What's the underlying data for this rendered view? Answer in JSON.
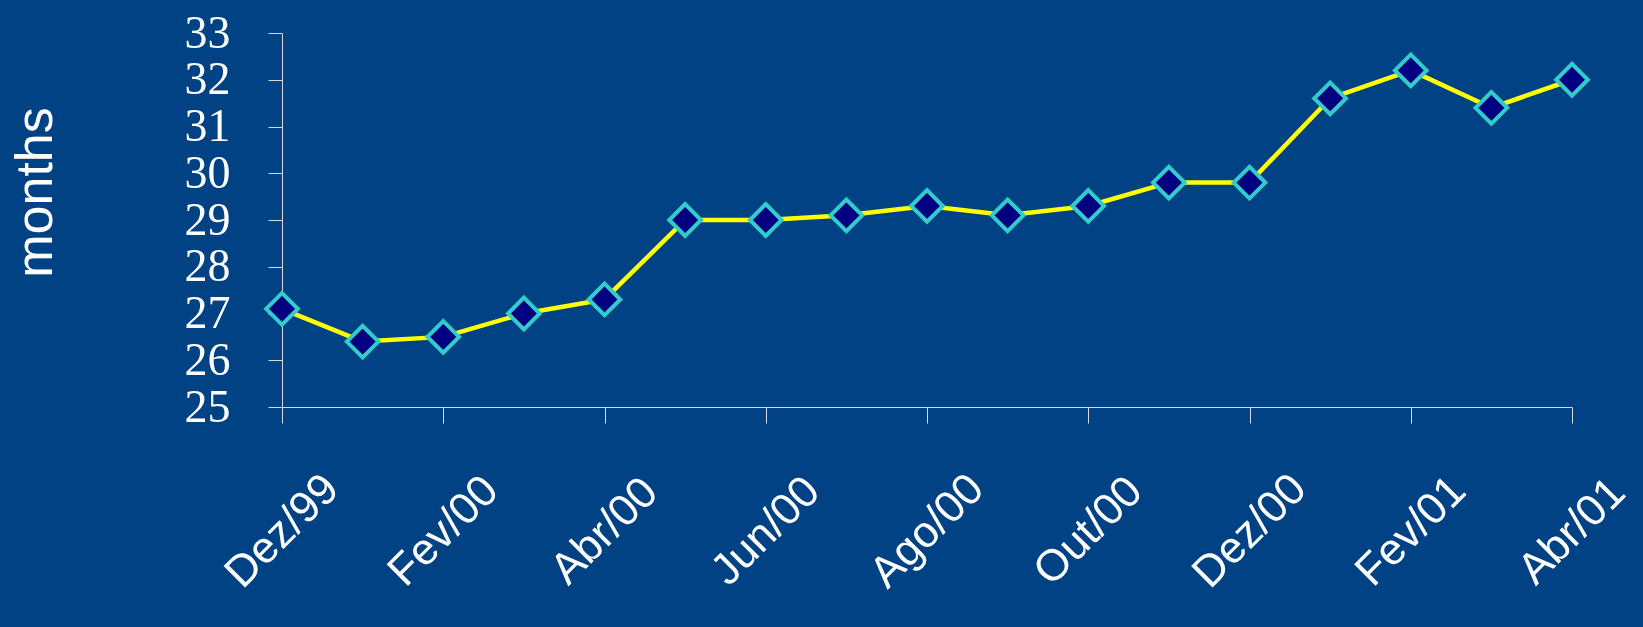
{
  "chart_data": {
    "type": "line",
    "ylabel": "months",
    "categories": [
      "Dez/99",
      null,
      "Fev/00",
      null,
      "Abr/00",
      null,
      "Jun/00",
      null,
      "Ago/00",
      null,
      "Out/00",
      null,
      "Dez/00",
      null,
      "Fev/01",
      null,
      "Abr/01"
    ],
    "series": [
      {
        "color": "#ffff00",
        "values": [
          27.1,
          26.4,
          26.5,
          27.0,
          27.3,
          29.0,
          29.0,
          29.1,
          29.3,
          29.1,
          29.3,
          29.8,
          29.8,
          31.6,
          32.2,
          31.4,
          32.0
        ]
      }
    ],
    "ylim": [
      25,
      33
    ],
    "yticks": [
      25,
      26,
      27,
      28,
      29,
      30,
      31,
      32,
      33
    ],
    "marker": "diamond",
    "line_style": "solid",
    "grid": false,
    "legend": false
  }
}
